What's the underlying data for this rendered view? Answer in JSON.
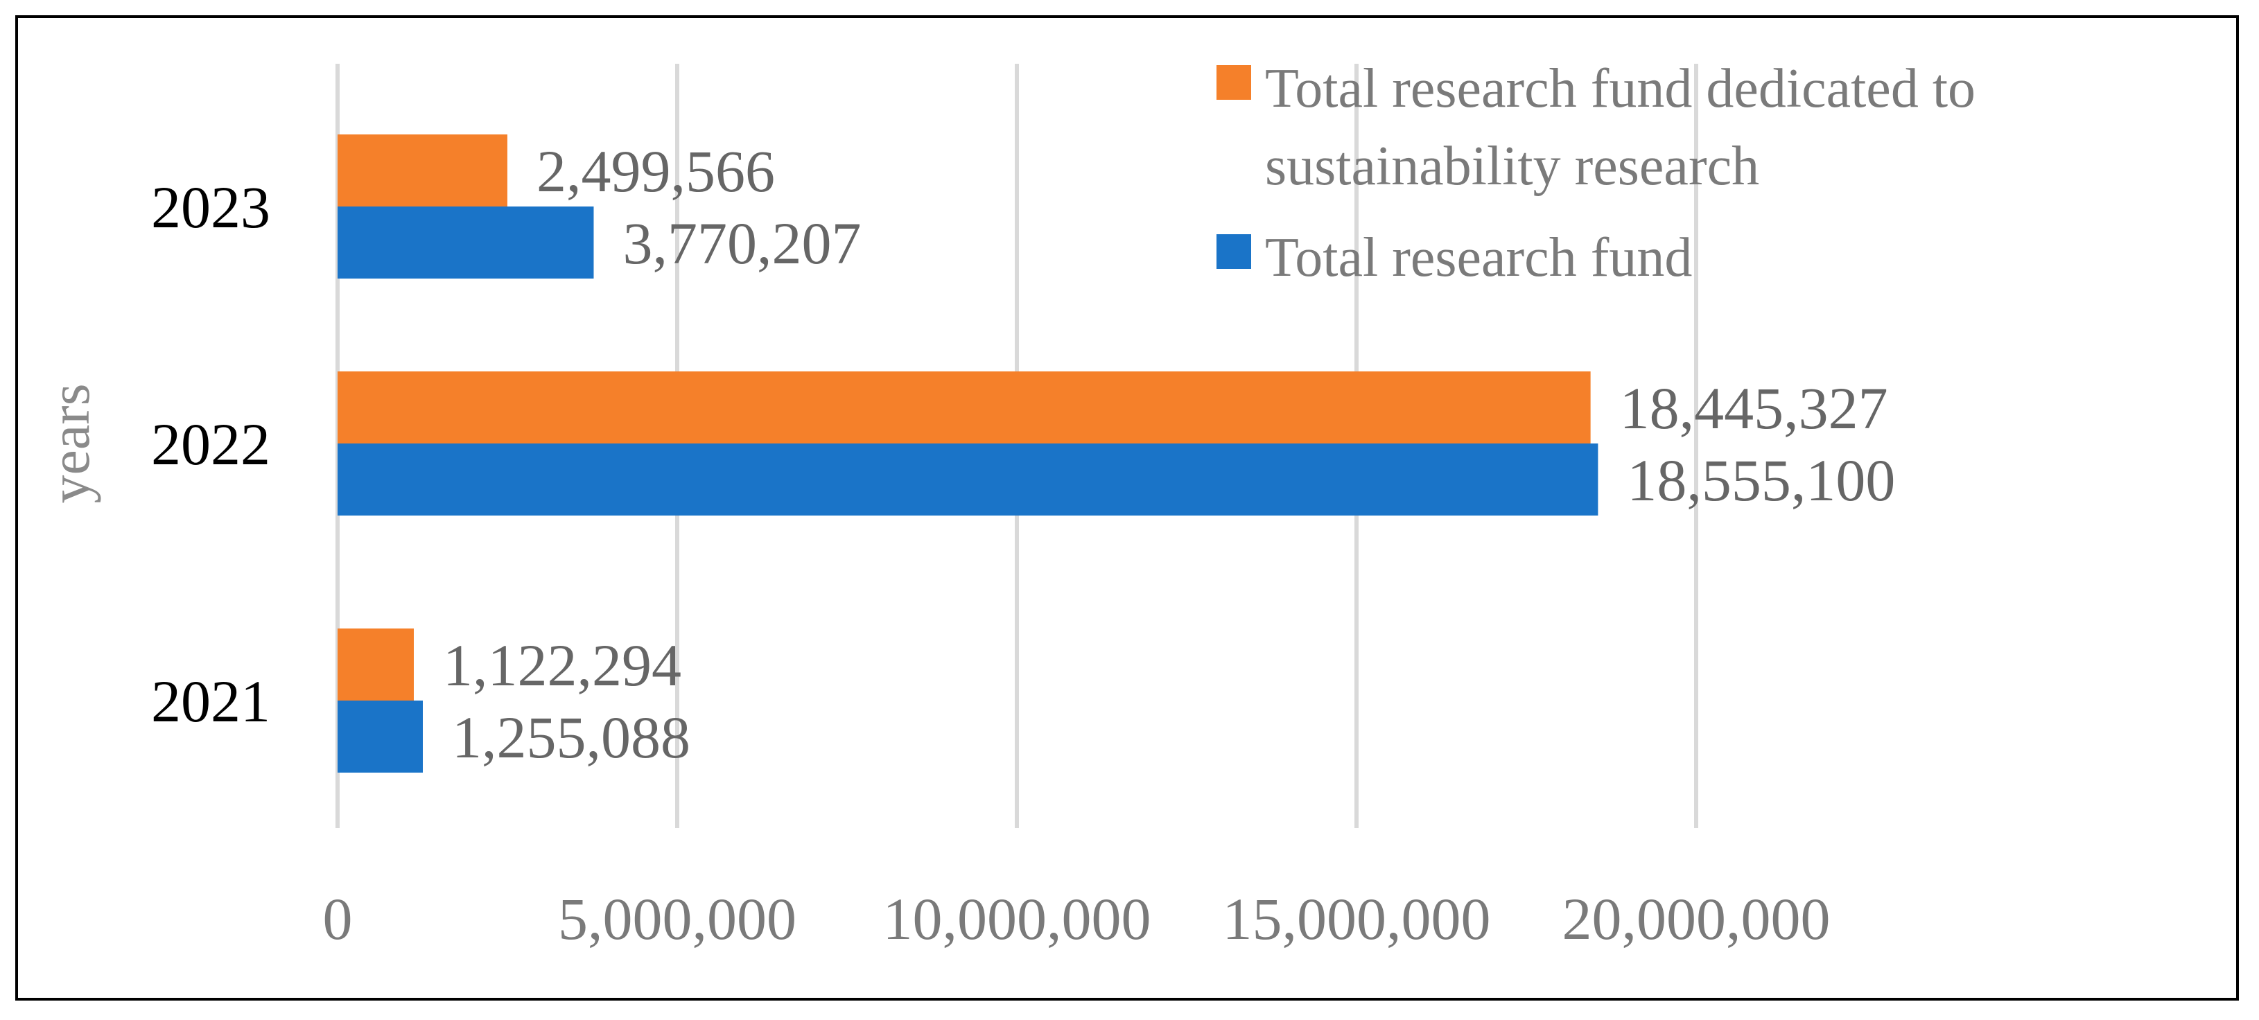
{
  "chart_data": {
    "type": "bar",
    "orientation": "horizontal",
    "title": "",
    "xlabel": "",
    "ylabel": "years",
    "categories": [
      "2021",
      "2022",
      "2023"
    ],
    "series": [
      {
        "name": "Total research fund dedicated to sustainability research",
        "color": "#F5802A",
        "values": [
          1122294,
          18445327,
          2499566
        ],
        "labels": [
          "1,122,294",
          "18,445,327",
          "2,499,566"
        ]
      },
      {
        "name": "Total research fund",
        "color": "#1A74C8",
        "values": [
          1255088,
          18555100,
          3770207
        ],
        "labels": [
          "1,255,088",
          "18,555,100",
          "3,770,207"
        ]
      }
    ],
    "xlim": [
      0,
      20000000
    ],
    "xticks": [
      0,
      5000000,
      10000000,
      15000000,
      20000000
    ],
    "xtick_labels": [
      "0",
      "5,000,000",
      "10,000,000",
      "15,000,000",
      "20,000,000"
    ],
    "grid": true,
    "legend_position": "top-right",
    "legend_lines": [
      [
        "Total research fund dedicated to",
        "sustainability research"
      ],
      [
        "Total research fund"
      ]
    ]
  }
}
